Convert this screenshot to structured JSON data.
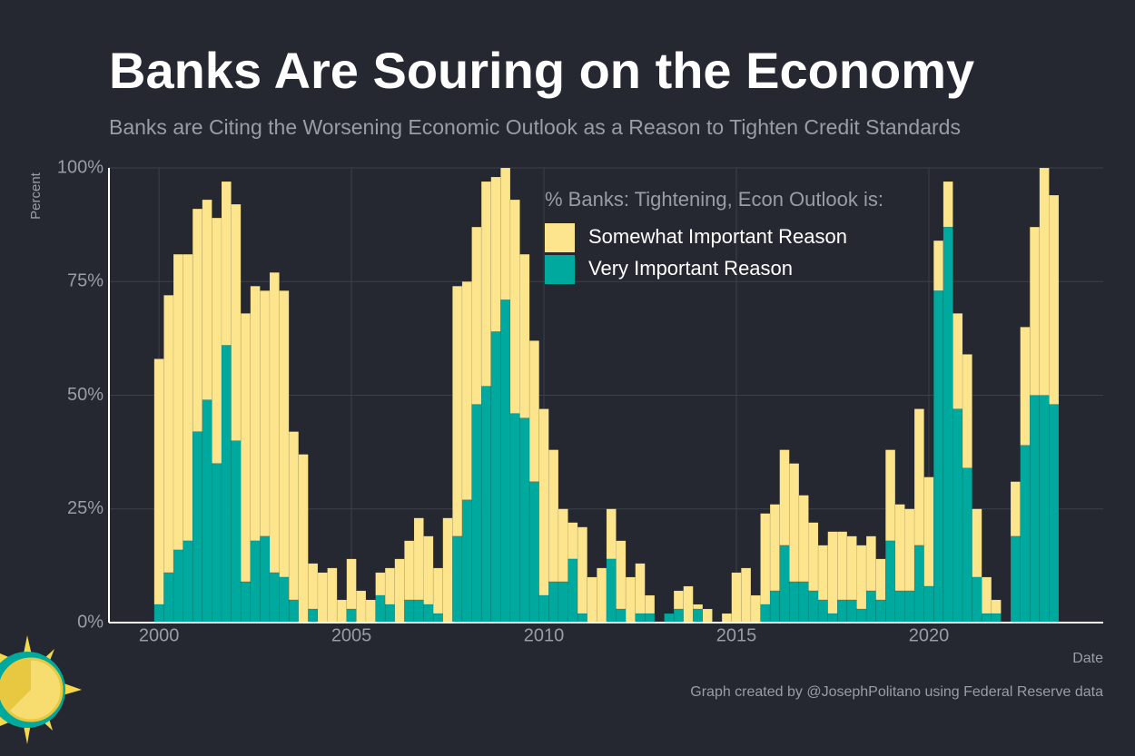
{
  "chart_data": {
    "type": "stacked_bar",
    "title": "Banks Are Souring on the Economy",
    "subtitle": "Banks are Citing the Worsening Economic Outlook as a Reason to Tighten Credit Standards",
    "y_label": "Percent",
    "x_label": "Date",
    "legend_title": "% Banks: Tightening, Econ Outlook is:",
    "credit": "Graph created by @JosephPolitano using Federal Reserve data",
    "grid": true,
    "xlim": [
      1998.7,
      2024.53
    ],
    "xticks": [
      2000,
      2005,
      2010,
      2015,
      2020
    ],
    "ylim": [
      0,
      100
    ],
    "yticks": [
      {
        "value": 0,
        "label": "0%"
      },
      {
        "value": 25,
        "label": "25%"
      },
      {
        "value": 50,
        "label": "50%"
      },
      {
        "value": 75,
        "label": "75%"
      },
      {
        "value": 100,
        "label": "100%"
      }
    ],
    "x": [
      2000,
      2000.25,
      2000.5,
      2000.75,
      2001,
      2001.25,
      2001.5,
      2001.75,
      2002,
      2002.25,
      2002.5,
      2002.75,
      2003,
      2003.25,
      2003.5,
      2003.75,
      2004,
      2004.25,
      2004.5,
      2004.75,
      2005,
      2005.25,
      2005.5,
      2005.75,
      2006,
      2006.25,
      2006.5,
      2006.75,
      2007,
      2007.25,
      2007.5,
      2007.75,
      2008,
      2008.25,
      2008.5,
      2008.75,
      2009,
      2009.25,
      2009.5,
      2009.75,
      2010,
      2010.25,
      2010.5,
      2010.75,
      2011,
      2011.25,
      2011.5,
      2011.75,
      2012,
      2012.25,
      2012.5,
      2012.75,
      2013,
      2013.25,
      2013.5,
      2013.75,
      2014,
      2014.25,
      2014.5,
      2014.75,
      2015,
      2015.25,
      2015.5,
      2015.75,
      2016,
      2016.25,
      2016.5,
      2016.75,
      2017,
      2017.25,
      2017.5,
      2017.75,
      2018,
      2018.25,
      2018.5,
      2018.75,
      2019,
      2019.25,
      2019.5,
      2019.75,
      2020,
      2020.25,
      2020.5,
      2020.75,
      2021,
      2021.25,
      2021.5,
      2021.75,
      2022,
      2022.25,
      2022.5,
      2022.75,
      2023,
      2023.25
    ],
    "series": [
      {
        "name": "Somewhat Important Reason",
        "color": "#fde58e",
        "values": [
          54,
          61,
          65,
          63,
          49,
          44,
          54,
          36,
          52,
          59,
          56,
          54,
          66,
          63,
          37,
          37,
          10,
          11,
          12,
          5,
          11,
          7,
          5,
          5,
          8,
          14,
          13,
          18,
          15,
          10,
          23,
          55,
          48,
          39,
          45,
          34,
          29,
          47,
          36,
          31,
          41,
          29,
          16,
          8,
          19,
          10,
          12,
          11,
          15,
          10,
          11,
          4,
          0,
          0,
          4,
          8,
          1,
          3,
          0,
          2,
          11,
          12,
          6,
          20,
          19,
          21,
          26,
          19,
          15,
          12,
          18,
          15,
          14,
          14,
          12,
          9,
          20,
          19,
          18,
          30,
          24,
          11,
          10,
          21,
          25,
          15,
          8,
          3,
          0,
          12,
          26,
          37,
          50,
          46
        ]
      },
      {
        "name": "Very Important Reason",
        "color": "#00a99d",
        "values": [
          4,
          11,
          16,
          18,
          42,
          49,
          35,
          61,
          40,
          9,
          18,
          19,
          11,
          10,
          5,
          0,
          3,
          0,
          0,
          0,
          3,
          0,
          0,
          6,
          4,
          0,
          5,
          5,
          4,
          2,
          0,
          19,
          27,
          48,
          52,
          64,
          71,
          46,
          45,
          31,
          6,
          9,
          9,
          14,
          2,
          0,
          0,
          14,
          3,
          0,
          2,
          2,
          0,
          2,
          3,
          0,
          3,
          0,
          0,
          0,
          0,
          0,
          0,
          4,
          7,
          17,
          9,
          9,
          7,
          5,
          2,
          5,
          5,
          3,
          7,
          5,
          18,
          7,
          7,
          17,
          8,
          73,
          87,
          47,
          34,
          10,
          2,
          2,
          0,
          19,
          39,
          50,
          50,
          48
        ]
      }
    ]
  }
}
